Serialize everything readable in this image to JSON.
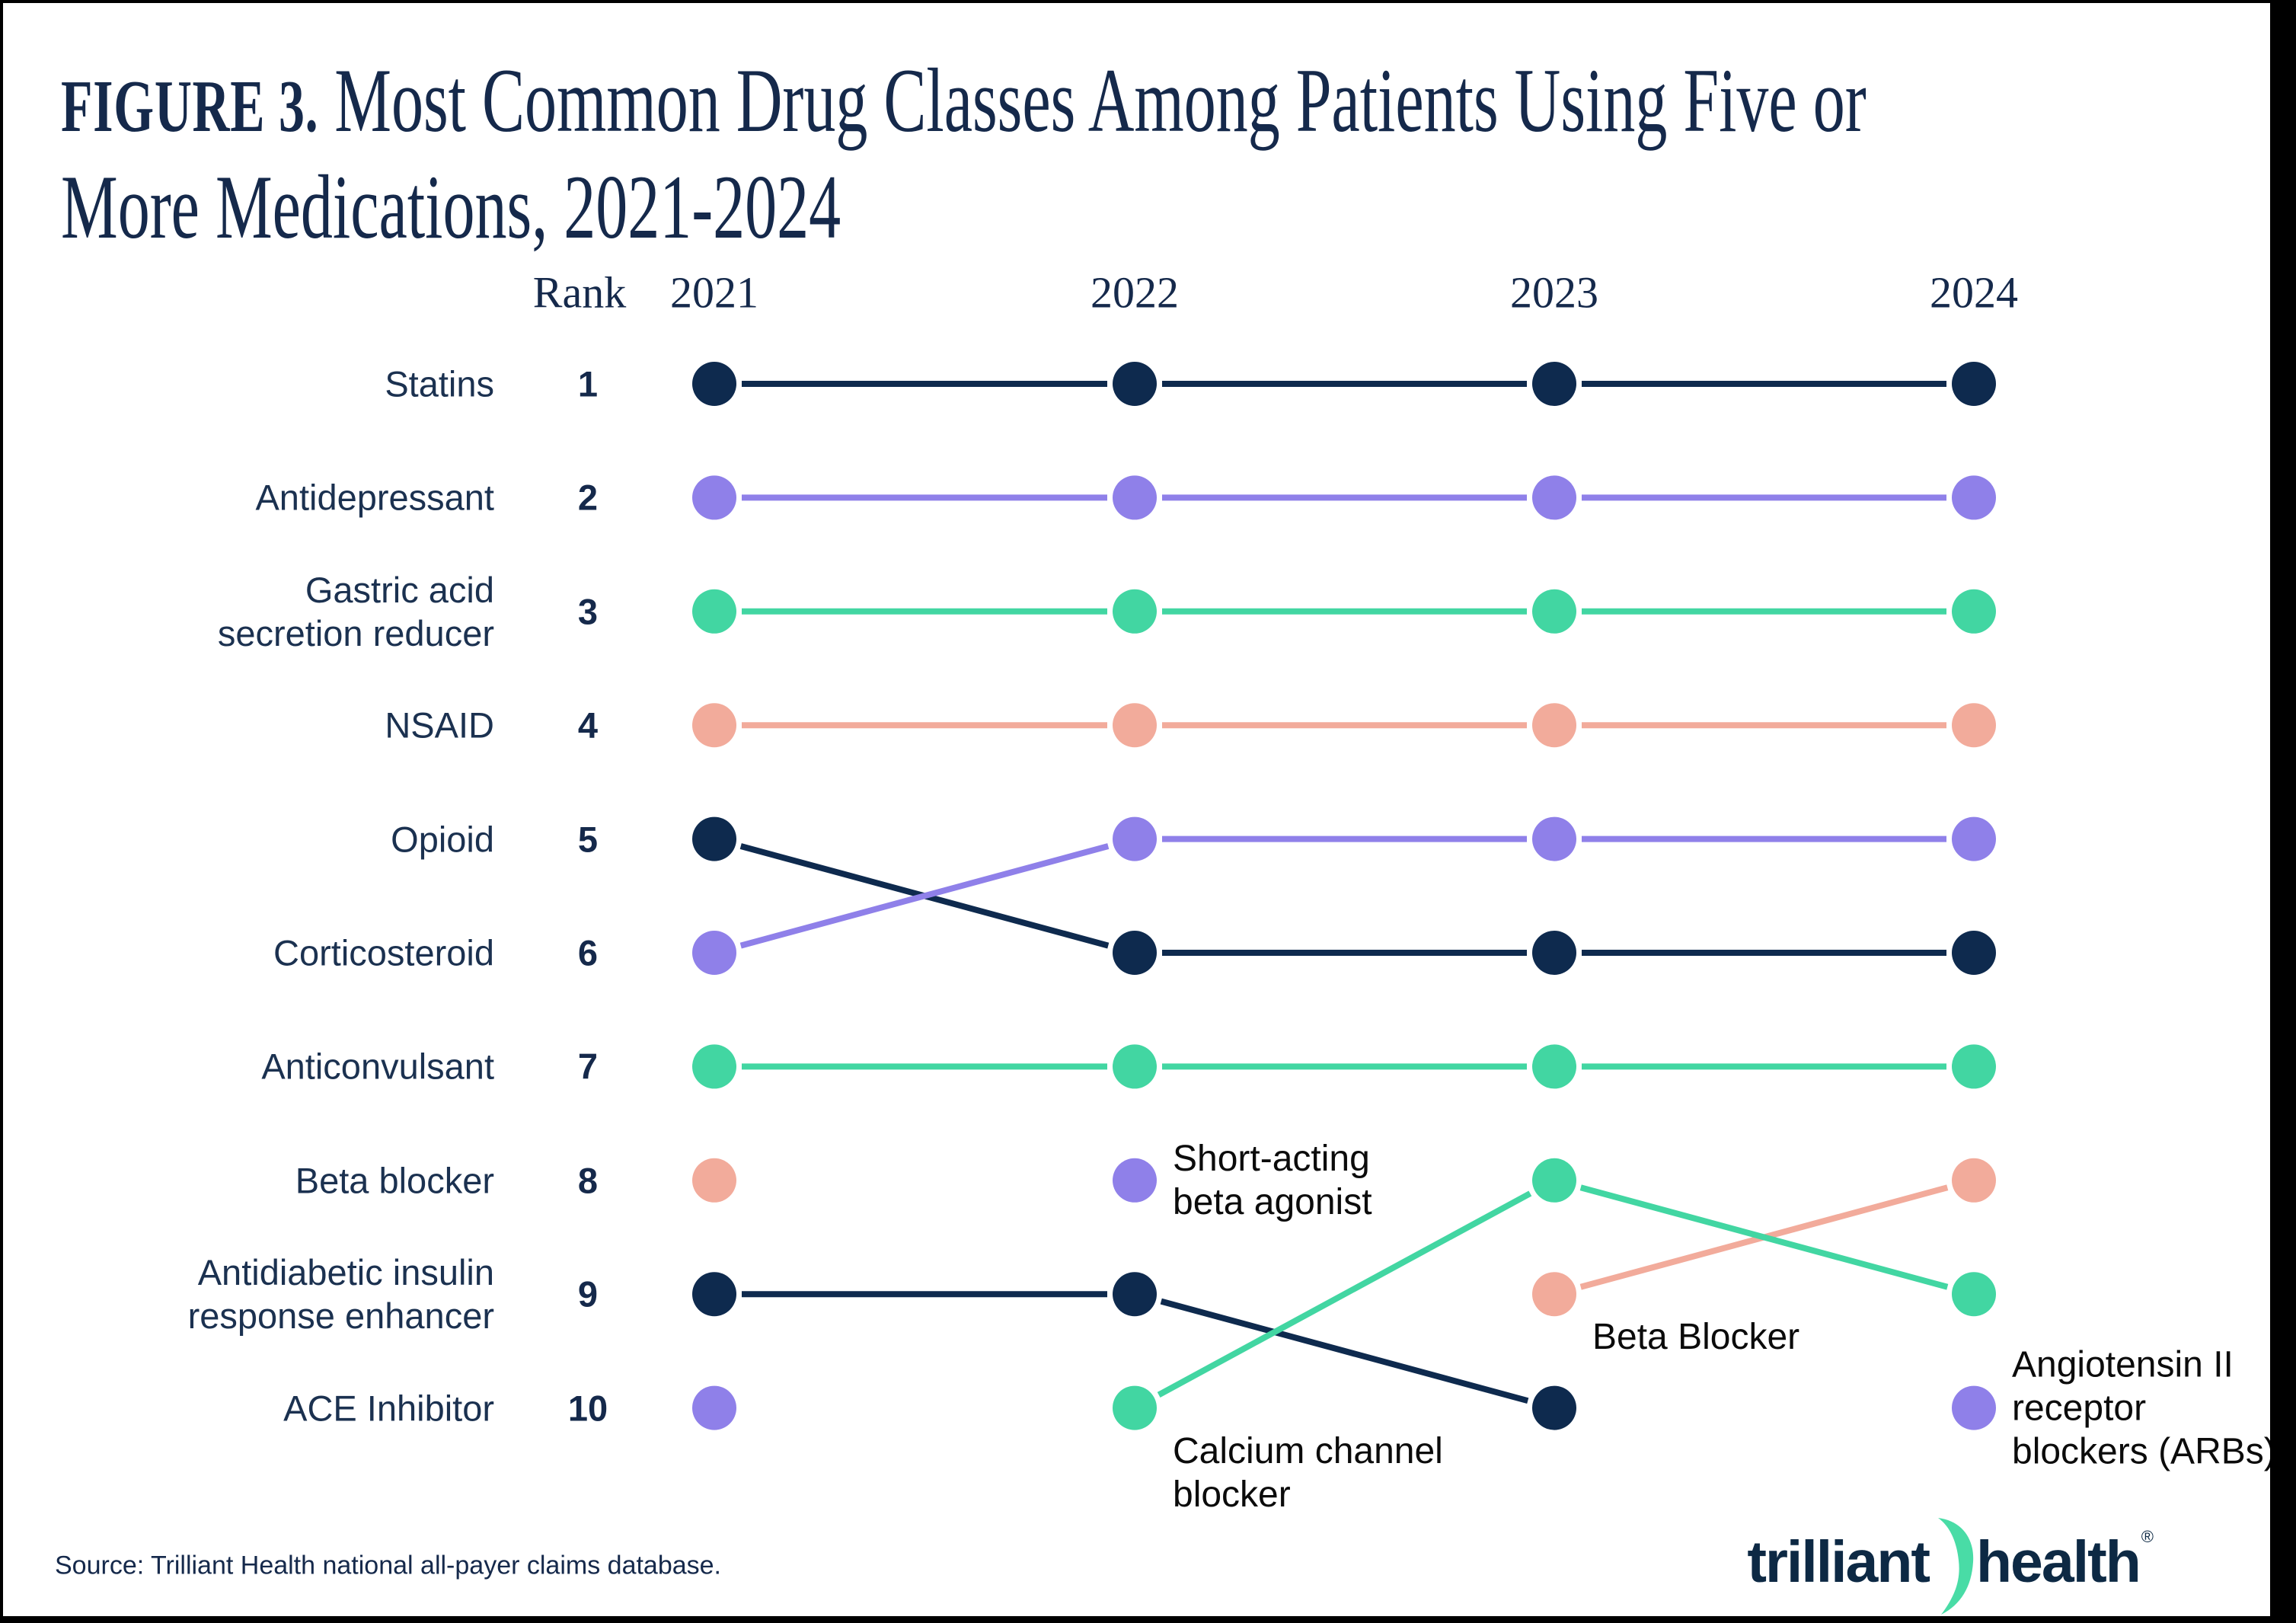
{
  "title": {
    "figure_label": "FIGURE 3.",
    "line1_rest": " Most Common Drug Classes Among Patients Using Five or",
    "line2": "More Medications, 2021-2024",
    "full_text": "FIGURE 3. Most Common Drug Classes Among Patients Using Five or More Medications, 2021-2024"
  },
  "header": {
    "rank_label": "Rank"
  },
  "colors": {
    "navy": "#0E2A4E",
    "purple": "#8F80E9",
    "green": "#42D6A2",
    "salmon": "#F2AB9B",
    "title_navy": "#15294B",
    "annotation_black": "#0B0B0B",
    "logo_navy": "#0D2944",
    "logo_green": "#49DCA6"
  },
  "chart_data": {
    "type": "line",
    "subtype": "bump-rank-chart",
    "title": "Most Common Drug Classes Among Patients Using Five or More Medications, 2021-2024",
    "years": [
      "2021",
      "2022",
      "2023",
      "2024"
    ],
    "rank_axis": [
      1,
      2,
      3,
      4,
      5,
      6,
      7,
      8,
      9,
      10
    ],
    "legend_position": "none",
    "grid": false,
    "rows": [
      {
        "rank": "1",
        "label": [
          "Statins"
        ]
      },
      {
        "rank": "2",
        "label": [
          "Antidepressant"
        ]
      },
      {
        "rank": "3",
        "label": [
          "Gastric acid",
          "secretion reducer"
        ]
      },
      {
        "rank": "4",
        "label": [
          "NSAID"
        ]
      },
      {
        "rank": "5",
        "label": [
          "Opioid"
        ]
      },
      {
        "rank": "6",
        "label": [
          "Corticosteroid"
        ]
      },
      {
        "rank": "7",
        "label": [
          "Anticonvulsant"
        ]
      },
      {
        "rank": "8",
        "label": [
          "Beta blocker"
        ]
      },
      {
        "rank": "9",
        "label": [
          "Antidiabetic insulin",
          "response enhancer"
        ]
      },
      {
        "rank": "10",
        "label": [
          "ACE Inhibitor"
        ]
      }
    ],
    "series": [
      {
        "name": "Statins",
        "color": "navy",
        "ranks": {
          "2021": 1,
          "2022": 1,
          "2023": 1,
          "2024": 1
        }
      },
      {
        "name": "Antidepressant",
        "color": "purple",
        "ranks": {
          "2021": 2,
          "2022": 2,
          "2023": 2,
          "2024": 2
        }
      },
      {
        "name": "Gastric acid secretion reducer",
        "color": "green",
        "ranks": {
          "2021": 3,
          "2022": 3,
          "2023": 3,
          "2024": 3
        }
      },
      {
        "name": "NSAID",
        "color": "salmon",
        "ranks": {
          "2021": 4,
          "2022": 4,
          "2023": 4,
          "2024": 4
        }
      },
      {
        "name": "Opioid",
        "color": "navy",
        "ranks": {
          "2021": 5,
          "2022": 6,
          "2023": 6,
          "2024": 6
        }
      },
      {
        "name": "Corticosteroid",
        "color": "purple",
        "ranks": {
          "2021": 6,
          "2022": 5,
          "2023": 5,
          "2024": 5
        }
      },
      {
        "name": "Anticonvulsant",
        "color": "green",
        "ranks": {
          "2021": 7,
          "2022": 7,
          "2023": 7,
          "2024": 7
        }
      },
      {
        "name": "Beta blocker",
        "color": "salmon",
        "ranks": {
          "2021": 8,
          "2023": 9,
          "2024": 8
        }
      },
      {
        "name": "Antidiabetic insulin response enhancer",
        "color": "navy",
        "ranks": {
          "2021": 9,
          "2022": 9,
          "2023": 10
        }
      },
      {
        "name": "ACE Inhibitor",
        "color": "purple",
        "ranks": {
          "2021": 10
        }
      },
      {
        "name": "Short-acting beta agonist",
        "color": "purple",
        "ranks": {
          "2022": 8
        }
      },
      {
        "name": "Calcium channel blocker",
        "color": "green",
        "ranks": {
          "2022": 10,
          "2023": 8,
          "2024": 9
        }
      },
      {
        "name": "Angiotensin II receptor blockers (ARBs)",
        "color": "purple",
        "ranks": {
          "2024": 10
        }
      }
    ]
  },
  "annotations": [
    {
      "lines": [
        "Short-acting",
        "beta agonist"
      ],
      "year": "2022",
      "rank": 8,
      "placement": "right"
    },
    {
      "lines": [
        "Calcium channel",
        "blocker"
      ],
      "year": "2022",
      "rank": 10,
      "placement": "below-right"
    },
    {
      "lines": [
        "Beta Blocker"
      ],
      "year": "2023",
      "rank": 9,
      "placement": "below-right"
    },
    {
      "lines": [
        "Angiotensin II",
        "receptor",
        "blockers (ARBs)"
      ],
      "year": "2024",
      "rank": 10,
      "placement": "right"
    }
  ],
  "source_note": "Source: Trilliant Health national all-payer claims database.",
  "logo": {
    "word1": "trilliant",
    "word2": "health",
    "registered_mark": "®",
    "swoosh_icon": "green-leaf-swoosh"
  }
}
